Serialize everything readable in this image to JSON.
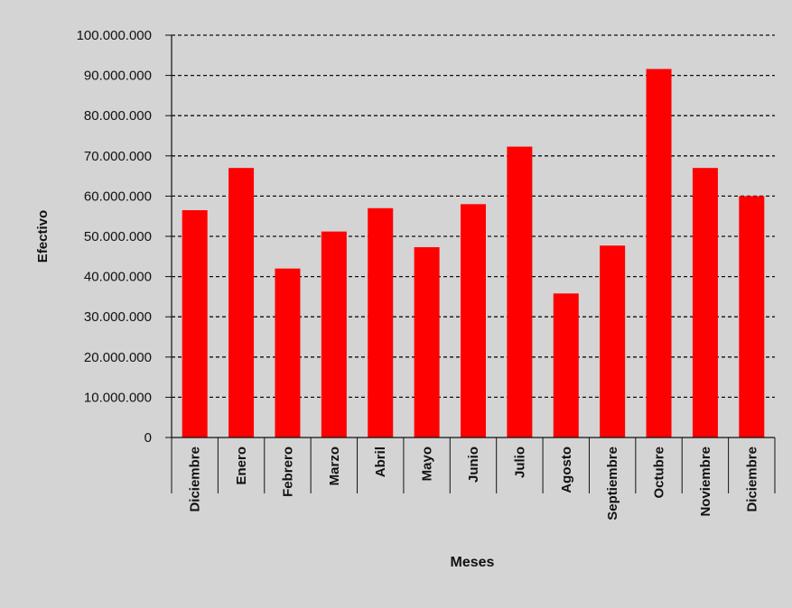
{
  "chart_data": {
    "type": "bar",
    "title": "",
    "xlabel": "Meses",
    "ylabel": "Efectivo",
    "categories": [
      "Diciembre",
      "Enero",
      "Febrero",
      "Marzo",
      "Abril",
      "Mayo",
      "Junio",
      "Julio",
      "Agosto",
      "Septiembre",
      "Octubre",
      "Noviembre",
      "Diciembre"
    ],
    "values": [
      56500000,
      67000000,
      42000000,
      51200000,
      57000000,
      47300000,
      58000000,
      72300000,
      35800000,
      47700000,
      91600000,
      67000000,
      60000000
    ],
    "ylim": [
      0,
      100000000
    ],
    "yticks": [
      0,
      10000000,
      20000000,
      30000000,
      40000000,
      50000000,
      60000000,
      70000000,
      80000000,
      90000000,
      100000000
    ],
    "ytick_labels": [
      "0",
      "10.000.000",
      "20.000.000",
      "30.000.000",
      "40.000.000",
      "50.000.000",
      "60.000.000",
      "70.000.000",
      "80.000.000",
      "90.000.000",
      "100.000.000"
    ],
    "grid": true,
    "bar_color": "#ff0000",
    "background_color": "#d4d4d4"
  }
}
